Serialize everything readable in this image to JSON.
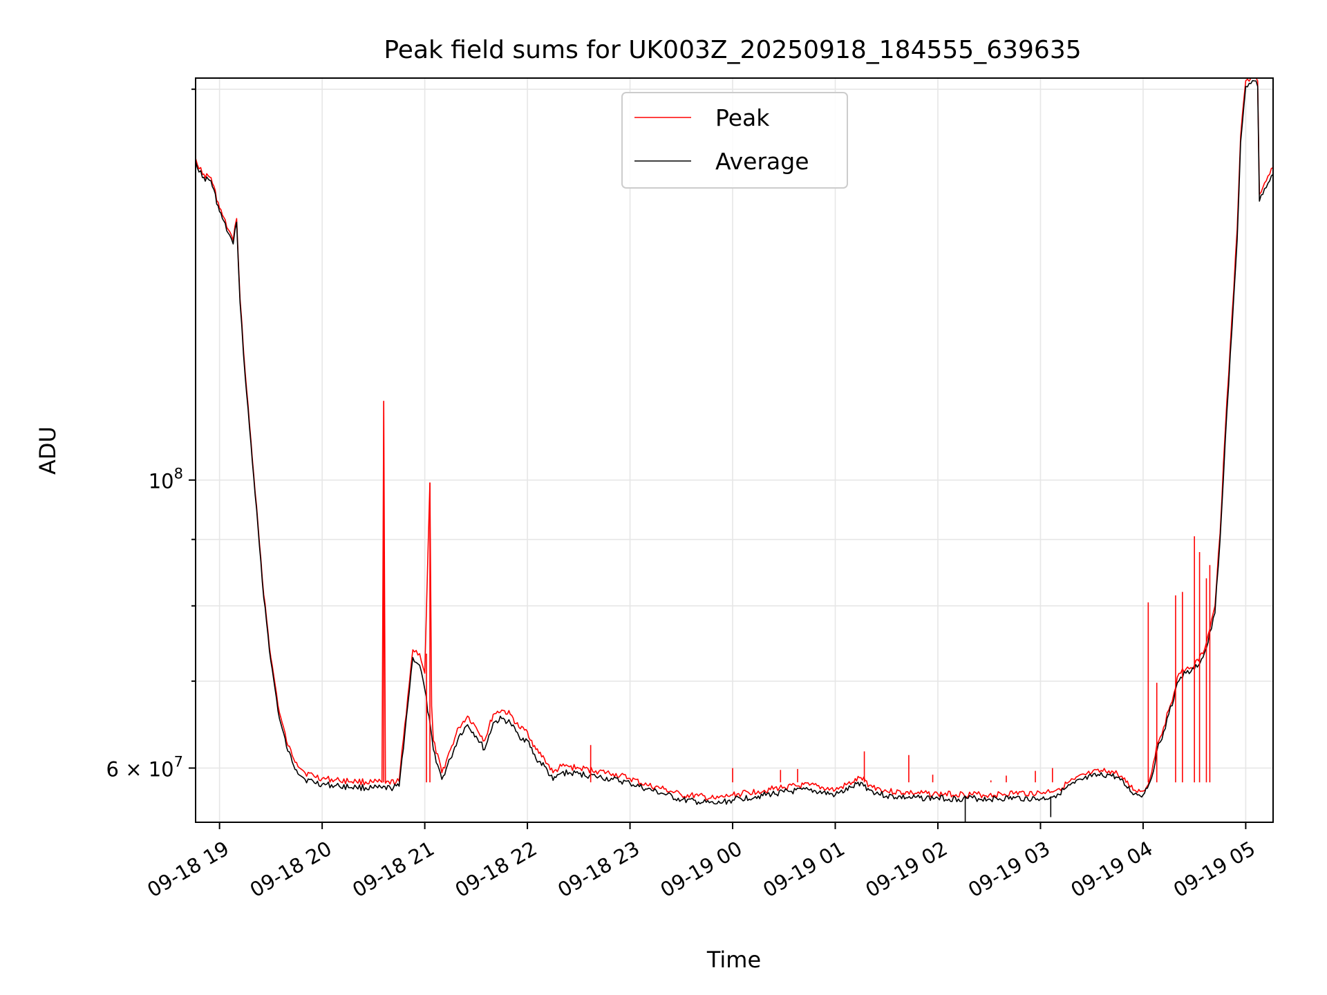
{
  "chart_data": {
    "type": "line",
    "title": "Peak field sums for UK003Z_20250918_184555_639635",
    "xlabel": "Time",
    "ylabel": "ADU",
    "yscale": "log",
    "grid": true,
    "legend_position": "top-center",
    "xlim": [
      "2025-09-18 18:46",
      "2025-09-19 05:16"
    ],
    "ylim": [
      54500000,
      204000000
    ],
    "x_ticks": [
      {
        "t": "2025-09-18 19:00",
        "label": "09-18 19"
      },
      {
        "t": "2025-09-18 20:00",
        "label": "09-18 20"
      },
      {
        "t": "2025-09-18 21:00",
        "label": "09-18 21"
      },
      {
        "t": "2025-09-18 22:00",
        "label": "09-18 22"
      },
      {
        "t": "2025-09-18 23:00",
        "label": "09-18 23"
      },
      {
        "t": "2025-09-19 00:00",
        "label": "09-19 00"
      },
      {
        "t": "2025-09-19 01:00",
        "label": "09-19 01"
      },
      {
        "t": "2025-09-19 02:00",
        "label": "09-19 02"
      },
      {
        "t": "2025-09-19 03:00",
        "label": "09-19 03"
      },
      {
        "t": "2025-09-19 04:00",
        "label": "09-19 04"
      },
      {
        "t": "2025-09-19 05:00",
        "label": "09-19 05"
      }
    ],
    "y_ticks_major": [
      {
        "value": 60000000,
        "label_base": "6 × 10",
        "label_exp": "7"
      },
      {
        "value": 100000000,
        "label_base": "10",
        "label_exp": "8"
      }
    ],
    "y_ticks_minor": [
      70000000,
      80000000,
      90000000,
      200000000
    ],
    "series": [
      {
        "name": "Peak",
        "color": "#ff0000",
        "x": [
          "2025-09-18 18:46",
          "2025-09-18 18:50",
          "2025-09-18 18:55",
          "2025-09-18 19:00",
          "2025-09-18 19:05",
          "2025-09-18 19:08",
          "2025-09-18 19:10",
          "2025-09-18 19:12",
          "2025-09-18 19:15",
          "2025-09-18 19:20",
          "2025-09-18 19:25",
          "2025-09-18 19:30",
          "2025-09-18 19:35",
          "2025-09-18 19:40",
          "2025-09-18 19:45",
          "2025-09-18 19:50",
          "2025-09-18 20:00",
          "2025-09-18 20:10",
          "2025-09-18 20:20",
          "2025-09-18 20:30",
          "2025-09-18 20:35",
          "2025-09-18 20:36",
          "2025-09-18 20:37",
          "2025-09-18 20:45",
          "2025-09-18 20:50",
          "2025-09-18 20:53",
          "2025-09-18 20:57",
          "2025-09-18 21:00",
          "2025-09-18 21:03",
          "2025-09-18 21:04",
          "2025-09-18 21:05",
          "2025-09-18 21:10",
          "2025-09-18 21:15",
          "2025-09-18 21:20",
          "2025-09-18 21:25",
          "2025-09-18 21:30",
          "2025-09-18 21:35",
          "2025-09-18 21:40",
          "2025-09-18 21:45",
          "2025-09-18 21:50",
          "2025-09-18 21:55",
          "2025-09-18 22:00",
          "2025-09-18 22:05",
          "2025-09-18 22:10",
          "2025-09-18 22:15",
          "2025-09-18 22:20",
          "2025-09-18 22:30",
          "2025-09-18 22:40",
          "2025-09-18 22:50",
          "2025-09-18 23:00",
          "2025-09-18 23:10",
          "2025-09-18 23:20",
          "2025-09-18 23:30",
          "2025-09-18 23:40",
          "2025-09-18 23:50",
          "2025-09-19 00:00",
          "2025-09-19 00:15",
          "2025-09-19 00:30",
          "2025-09-19 00:45",
          "2025-09-19 01:00",
          "2025-09-19 01:10",
          "2025-09-19 01:15",
          "2025-09-19 01:20",
          "2025-09-19 01:30",
          "2025-09-19 01:45",
          "2025-09-19 02:00",
          "2025-09-19 02:15",
          "2025-09-19 02:30",
          "2025-09-19 02:45",
          "2025-09-19 03:00",
          "2025-09-19 03:10",
          "2025-09-19 03:20",
          "2025-09-19 03:30",
          "2025-09-19 03:40",
          "2025-09-19 03:45",
          "2025-09-19 03:50",
          "2025-09-19 03:55",
          "2025-09-19 04:00",
          "2025-09-19 04:02",
          "2025-09-19 04:05",
          "2025-09-19 04:08",
          "2025-09-19 04:12",
          "2025-09-19 04:15",
          "2025-09-19 04:18",
          "2025-09-19 04:20",
          "2025-09-19 04:22",
          "2025-09-19 04:25",
          "2025-09-19 04:28",
          "2025-09-19 04:30",
          "2025-09-19 04:35",
          "2025-09-19 04:38",
          "2025-09-19 04:42",
          "2025-09-19 04:45",
          "2025-09-19 04:48",
          "2025-09-19 04:52",
          "2025-09-19 04:55",
          "2025-09-19 04:57",
          "2025-09-19 05:00",
          "2025-09-19 05:03",
          "2025-09-19 05:05",
          "2025-09-19 05:07",
          "2025-09-19 05:08",
          "2025-09-19 05:10",
          "2025-09-19 05:12",
          "2025-09-19 05:14",
          "2025-09-19 05:16"
        ],
        "y": [
          177000000,
          172000000,
          171000000,
          162000000,
          156000000,
          153000000,
          159000000,
          138000000,
          121000000,
          101000000,
          84000000,
          73000000,
          66200000,
          62400000,
          60600000,
          59500000,
          58900000,
          58700000,
          58600000,
          58500000,
          58500000,
          115000000,
          58400000,
          58600000,
          68000000,
          74000000,
          73500000,
          71000000,
          99500000,
          67000000,
          63000000,
          59500000,
          62000000,
          64500000,
          65800000,
          64500000,
          63000000,
          66000000,
          66500000,
          66000000,
          64500000,
          64000000,
          62000000,
          61000000,
          59500000,
          60200000,
          60000000,
          59700000,
          59400000,
          58900000,
          58200000,
          57800000,
          57200000,
          57100000,
          56800000,
          57200000,
          57600000,
          58000000,
          58200000,
          57700000,
          58500000,
          59000000,
          58200000,
          57600000,
          57400000,
          57300000,
          57300000,
          57200000,
          57400000,
          57400000,
          57800000,
          58800000,
          59500000,
          59700000,
          59400000,
          58500000,
          57700000,
          57600000,
          58000000,
          59500000,
          62500000,
          64500000,
          66500000,
          68500000,
          70500000,
          71000000,
          71500000,
          71700000,
          72000000,
          73500000,
          76000000,
          80000000,
          91000000,
          109000000,
          134000000,
          156000000,
          184000000,
          203000000,
          204000000,
          205000000,
          203000000,
          166000000,
          168000000,
          170000000,
          172000000,
          174000000
        ]
      },
      {
        "name": "Average",
        "color": "#000000",
        "x": [
          "2025-09-18 18:46",
          "2025-09-18 18:50",
          "2025-09-18 18:55",
          "2025-09-18 19:00",
          "2025-09-18 19:05",
          "2025-09-18 19:08",
          "2025-09-18 19:10",
          "2025-09-18 19:12",
          "2025-09-18 19:15",
          "2025-09-18 19:20",
          "2025-09-18 19:25",
          "2025-09-18 19:30",
          "2025-09-18 19:35",
          "2025-09-18 19:40",
          "2025-09-18 19:45",
          "2025-09-18 19:50",
          "2025-09-18 20:00",
          "2025-09-18 20:10",
          "2025-09-18 20:20",
          "2025-09-18 20:30",
          "2025-09-18 20:35",
          "2025-09-18 20:40",
          "2025-09-18 20:45",
          "2025-09-18 20:50",
          "2025-09-18 20:53",
          "2025-09-18 20:57",
          "2025-09-18 21:00",
          "2025-09-18 21:05",
          "2025-09-18 21:10",
          "2025-09-18 21:15",
          "2025-09-18 21:20",
          "2025-09-18 21:25",
          "2025-09-18 21:30",
          "2025-09-18 21:35",
          "2025-09-18 21:40",
          "2025-09-18 21:45",
          "2025-09-18 21:50",
          "2025-09-18 21:55",
          "2025-09-18 22:00",
          "2025-09-18 22:05",
          "2025-09-18 22:10",
          "2025-09-18 22:15",
          "2025-09-18 22:20",
          "2025-09-18 22:30",
          "2025-09-18 22:40",
          "2025-09-18 22:50",
          "2025-09-18 23:00",
          "2025-09-18 23:10",
          "2025-09-18 23:20",
          "2025-09-18 23:30",
          "2025-09-18 23:40",
          "2025-09-18 23:50",
          "2025-09-19 00:00",
          "2025-09-19 00:15",
          "2025-09-19 00:30",
          "2025-09-19 00:45",
          "2025-09-19 01:00",
          "2025-09-19 01:10",
          "2025-09-19 01:15",
          "2025-09-19 01:20",
          "2025-09-19 01:30",
          "2025-09-19 01:45",
          "2025-09-19 02:00",
          "2025-09-19 02:12",
          "2025-09-19 02:15",
          "2025-09-19 02:30",
          "2025-09-19 02:45",
          "2025-09-19 03:00",
          "2025-09-19 03:06",
          "2025-09-19 03:10",
          "2025-09-19 03:20",
          "2025-09-19 03:30",
          "2025-09-19 03:40",
          "2025-09-19 03:45",
          "2025-09-19 03:50",
          "2025-09-19 03:55",
          "2025-09-19 04:00",
          "2025-09-19 04:05",
          "2025-09-19 04:08",
          "2025-09-19 04:12",
          "2025-09-19 04:15",
          "2025-09-19 04:18",
          "2025-09-19 04:20",
          "2025-09-19 04:22",
          "2025-09-19 04:25",
          "2025-09-19 04:28",
          "2025-09-19 04:30",
          "2025-09-19 04:35",
          "2025-09-19 04:38",
          "2025-09-19 04:42",
          "2025-09-19 04:45",
          "2025-09-19 04:48",
          "2025-09-19 04:52",
          "2025-09-19 04:55",
          "2025-09-19 04:57",
          "2025-09-19 05:00",
          "2025-09-19 05:03",
          "2025-09-19 05:05",
          "2025-09-19 05:07",
          "2025-09-19 05:08",
          "2025-09-19 05:10",
          "2025-09-19 05:12",
          "2025-09-19 05:14",
          "2025-09-19 05:16"
        ],
        "y": [
          176000000,
          171000000,
          170000000,
          161000000,
          155000000,
          152000000,
          158000000,
          137000000,
          120000000,
          100500000,
          83500000,
          72500000,
          65500000,
          61800000,
          59800000,
          58800000,
          58300000,
          58100000,
          58000000,
          57900000,
          57900000,
          57900000,
          58100000,
          67000000,
          73000000,
          72000000,
          69000000,
          62000000,
          58800000,
          61000000,
          63500000,
          64800000,
          63500000,
          62000000,
          65000000,
          65500000,
          65000000,
          63500000,
          63000000,
          61000000,
          60200000,
          58700000,
          59500000,
          59400000,
          59100000,
          58800000,
          58400000,
          57800000,
          57300000,
          56700000,
          56500000,
          56300000,
          56700000,
          57100000,
          57500000,
          57700000,
          57200000,
          58000000,
          58500000,
          57700000,
          57100000,
          56900000,
          56900000,
          56800000,
          56900000,
          56800000,
          56900000,
          56800000,
          57000000,
          57300000,
          58400000,
          59100000,
          59300000,
          59000000,
          58100000,
          57300000,
          57200000,
          59000000,
          61800000,
          64000000,
          66000000,
          67800000,
          69800000,
          70500000,
          71000000,
          71200000,
          71500000,
          73000000,
          75000000,
          79000000,
          90000000,
          107000000,
          131000000,
          153000000,
          182000000,
          201000000,
          202000000,
          203000000,
          201000000,
          164000000,
          166000000,
          168000000,
          170000000,
          172000000
        ]
      }
    ],
    "peak_spikes": [
      {
        "t": "2025-09-18 20:36",
        "value": 115000000
      },
      {
        "t": "2025-09-18 21:03",
        "value": 99500000
      },
      {
        "t": "2025-09-18 21:01",
        "value": 73500000
      },
      {
        "t": "2025-09-18 22:37",
        "value": 62500000
      },
      {
        "t": "2025-09-19 00:00",
        "value": 60000000
      },
      {
        "t": "2025-09-19 00:28",
        "value": 59800000
      },
      {
        "t": "2025-09-19 00:38",
        "value": 59900000
      },
      {
        "t": "2025-09-19 01:17",
        "value": 61800000
      },
      {
        "t": "2025-09-19 01:43",
        "value": 61400000
      },
      {
        "t": "2025-09-19 01:57",
        "value": 59300000
      },
      {
        "t": "2025-09-19 02:31",
        "value": 58700000
      },
      {
        "t": "2025-09-19 02:40",
        "value": 59200000
      },
      {
        "t": "2025-09-19 02:57",
        "value": 59700000
      },
      {
        "t": "2025-09-19 03:07",
        "value": 60000000
      },
      {
        "t": "2025-09-19 04:03",
        "value": 80500000
      },
      {
        "t": "2025-09-19 04:08",
        "value": 69800000
      },
      {
        "t": "2025-09-19 04:19",
        "value": 81500000
      },
      {
        "t": "2025-09-19 04:23",
        "value": 82000000
      },
      {
        "t": "2025-09-19 04:30",
        "value": 90500000
      },
      {
        "t": "2025-09-19 04:33",
        "value": 88000000
      },
      {
        "t": "2025-09-19 04:37",
        "value": 84000000
      },
      {
        "t": "2025-09-19 04:39",
        "value": 86000000
      }
    ],
    "average_dips": [
      {
        "t": "2025-09-19 02:16",
        "value": 54500000
      },
      {
        "t": "2025-09-19 03:06",
        "value": 55000000
      }
    ]
  }
}
